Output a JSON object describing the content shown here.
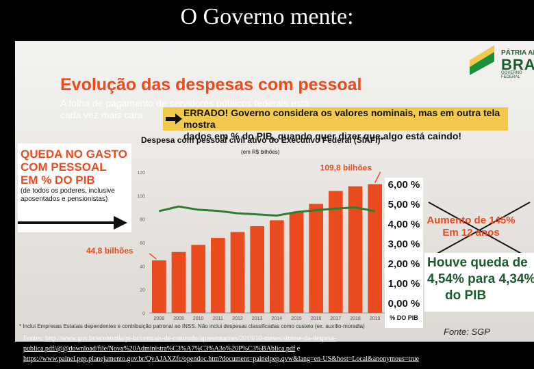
{
  "slide_title": "O Governo mente:",
  "logo": {
    "top": "PÁTRIA AMADA",
    "main": "BRASIL",
    "sub": "GOVERNO FEDERAL"
  },
  "panel": {
    "title": "Evolução das despesas com pessoal",
    "subtitle_line1": "A folha de pagamento de servidores públicos federais está",
    "subtitle_line2": "cada vez mais cara",
    "errado_line1": "ERRADO! Governo considera os valores nominais, mas em outra tela mostra",
    "errado_line2": "dados em % do PIB, quando quer dizer que algo está caindo!",
    "chart_title": "Despesa com pessoal civil ativo do Executivo Federal (SIAFI)*",
    "chart_unit": "(em R$ bilhões)",
    "queda_title": [
      "QUEDA NO GASTO",
      "COM PESSOAL",
      "EM % DO PIB"
    ],
    "queda_note": "(de todos os poderes, inclusive aposentados e pensionistas)",
    "label_high": "109,8 bilhões",
    "label_low": "44,8 bilhões",
    "pct_labels": [
      "6,00 %",
      "5,00 %",
      "4,00 %",
      "3,00 %",
      "2,00 %",
      "1,00 %",
      "0,00 %"
    ],
    "pct_axis_label": "% DO PIB",
    "aumento": [
      "Aumento de 145%",
      "Em 12 anos"
    ],
    "houve": [
      "Houve queda de",
      "4,54% para 4,34%",
      "do PIB"
    ],
    "footnote": "* Inclui Empresas Estatais dependentes e contribuição patronal ao INSS. Não inclui despesas classificadas como custeio (ex. auxílio-moradia)",
    "fonte": "Fonte: SGP"
  },
  "fontes": {
    "line1_prefix": "Fontes: ",
    "line1_link": "http://www.gov.br/economia/pt-br/centrais-de-conteudo/apresentacoes/2019/10-meses/sintese-da-despesa-",
    "line2_link": "publica.pdf/@@download/file/Nova%20Administra%C3%A7%C3%A3o%20P%C3%BAblica.pdf",
    "line2_suffix": " e",
    "line3_link": "https://www.painel.pep.planejamento.gov.br/QvAJAXZfc/opendoc.htm?document=painelpep.qvw&lang=en-US&host=Local&anonymous=true"
  },
  "colors": {
    "bar": "#e94a1e",
    "line": "#2e7d32",
    "title": "#e94a1e",
    "highlight": "#f2c94c"
  },
  "chart_data": {
    "type": "bar",
    "title": "Despesa com pessoal civil ativo do Executivo Federal (SIAFI)*",
    "ylabel": "(em R$ bilhões)",
    "categories": [
      "2008",
      "2009",
      "2010",
      "2011",
      "2012",
      "2013",
      "2014",
      "2015",
      "2016",
      "2017",
      "2018",
      "2019"
    ],
    "series": [
      {
        "values": [
          44.8,
          52,
          58,
          64,
          69,
          74,
          79,
          86,
          93,
          104,
          108,
          109.8
        ]
      },
      {
        "values": [
          4.34,
          4.54,
          4.4,
          4.35,
          4.25,
          4.2,
          4.15,
          4.3,
          4.38,
          4.45,
          4.5,
          4.34
        ]
      }
    ],
    "y_ticks": [
      0,
      20,
      40,
      60,
      80,
      100,
      120
    ],
    "ylim": [
      0,
      120
    ],
    "y2lim": [
      0,
      6
    ],
    "annotations": [
      "109,8 bilhões",
      "44,8 bilhões"
    ],
    "grid": false
  }
}
